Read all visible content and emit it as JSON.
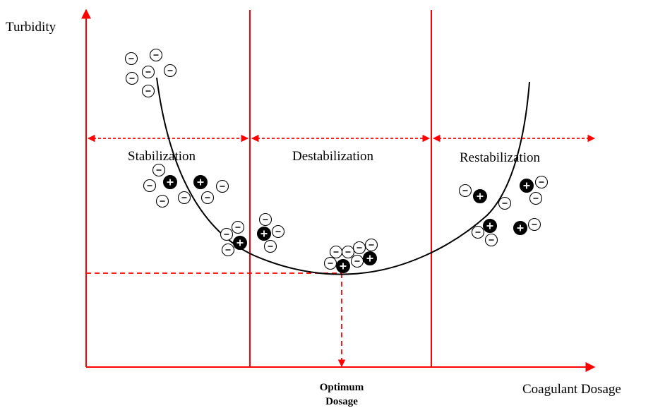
{
  "axes": {
    "y_label": "Turbidity",
    "x_label": "Coagulant Dosage"
  },
  "regions": [
    {
      "label": "Stabilization"
    },
    {
      "label": "Destabilization"
    },
    {
      "label": "Restabilization"
    }
  ],
  "optimum": {
    "label_line1": "Optimum",
    "label_line2": "Dosage"
  },
  "colors": {
    "axis": "#ff0000",
    "curve": "#000000",
    "negative_ion_fill": "#ffffff",
    "positive_ion_fill": "#000000"
  },
  "icons": {
    "negative_ion": "minus-charge-circle-icon",
    "positive_ion": "plus-charge-circle-icon"
  }
}
